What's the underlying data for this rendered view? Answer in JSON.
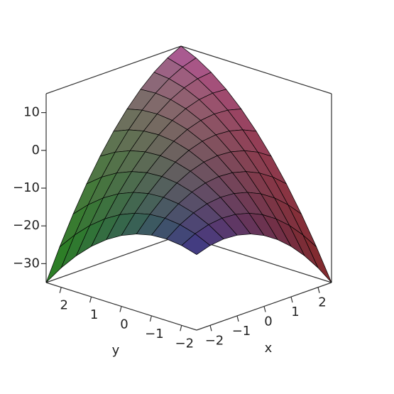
{
  "chart_data": {
    "type": "surface",
    "x_label": "x",
    "y_label": "y",
    "x": [
      -2.5,
      -2,
      -1.5,
      -1,
      -0.5,
      0,
      0.5,
      1,
      1.5,
      2,
      2.5
    ],
    "y": [
      -2.5,
      -2,
      -1.5,
      -1,
      -0.5,
      0,
      0.5,
      1,
      1.5,
      2,
      2.5
    ],
    "z": [
      [
        -15,
        -13.85,
        -13.4,
        -13.65,
        -14.6,
        -16.25,
        -18.6,
        -21.65,
        -25.4,
        -29.85,
        -35
      ],
      [
        -13.85,
        -12,
        -10.85,
        -10.4,
        -10.65,
        -11.6,
        -13.25,
        -15.6,
        -18.65,
        -22.4,
        -26.85
      ],
      [
        -13.4,
        -10.85,
        -9,
        -7.85,
        -7.4,
        -7.65,
        -8.6,
        -10.25,
        -12.6,
        -15.65,
        -19.4
      ],
      [
        -13.65,
        -10.4,
        -7.85,
        -6,
        -4.85,
        -4.4,
        -4.65,
        -5.6,
        -7.25,
        -9.6,
        -12.65
      ],
      [
        -14.6,
        -10.65,
        -7.4,
        -4.85,
        -3,
        -1.85,
        -1.4,
        -1.65,
        -2.6,
        -4.25,
        -6.6
      ],
      [
        -16.25,
        -11.6,
        -7.65,
        -4.4,
        -1.85,
        0,
        1.15,
        1.6,
        1.35,
        0.4,
        -1.25
      ],
      [
        -18.6,
        -13.25,
        -8.6,
        -4.65,
        -1.4,
        1.15,
        3,
        4.15,
        4.6,
        4.35,
        3.4
      ],
      [
        -21.65,
        -15.6,
        -10.25,
        -5.6,
        -1.65,
        1.6,
        4.15,
        6,
        7.15,
        7.6,
        7.35
      ],
      [
        -25.4,
        -18.65,
        -12.6,
        -7.25,
        -2.6,
        1.35,
        4.6,
        7.15,
        9,
        10.15,
        10.6
      ],
      [
        -29.85,
        -22.4,
        -15.65,
        -9.6,
        -4.25,
        0.4,
        4.35,
        7.6,
        10.15,
        12,
        13.15
      ],
      [
        -35,
        -26.85,
        -19.4,
        -12.65,
        -6.6,
        -1.25,
        3.4,
        7.35,
        10.6,
        13.15,
        15
      ]
    ],
    "xlim": [
      -2.5,
      2.5
    ],
    "ylim": [
      -2.5,
      2.5
    ],
    "zlim": [
      -35,
      15
    ],
    "xticks": [
      {
        "value": -2,
        "label": "−2"
      },
      {
        "value": -1,
        "label": "−1"
      },
      0,
      1,
      2
    ],
    "yticks": [
      {
        "value": -2,
        "label": "−2"
      },
      {
        "value": -1,
        "label": "−1"
      },
      0,
      1,
      2
    ],
    "zticks": [
      {
        "value": -30,
        "label": "−30"
      },
      {
        "value": -20,
        "label": "−20"
      },
      {
        "value": -10,
        "label": "−10"
      },
      0,
      10
    ],
    "corner_colors": [
      "#5a4fc8",
      "#ff4f4f",
      "#4cff3c",
      "#ff80e0"
    ]
  }
}
